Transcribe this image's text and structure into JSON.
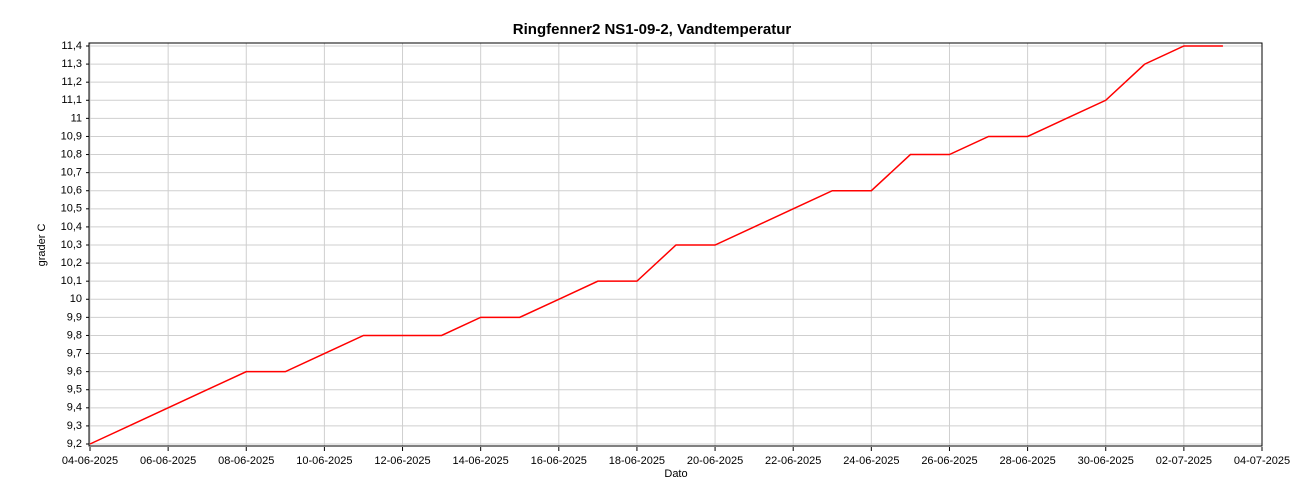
{
  "chart_data": {
    "type": "line",
    "title": "Ringfenner2 NS1-09-2, Vandtemperatur",
    "x_label": "Dato",
    "y_label": "grader C",
    "x": [
      "2025-06-04",
      "2025-06-05",
      "2025-06-06",
      "2025-06-07",
      "2025-06-08",
      "2025-06-09",
      "2025-06-10",
      "2025-06-11",
      "2025-06-12",
      "2025-06-13",
      "2025-06-14",
      "2025-06-15",
      "2025-06-16",
      "2025-06-17",
      "2025-06-18",
      "2025-06-19",
      "2025-06-20",
      "2025-06-21",
      "2025-06-22",
      "2025-06-23",
      "2025-06-24",
      "2025-06-25",
      "2025-06-26",
      "2025-06-27",
      "2025-06-28",
      "2025-06-29",
      "2025-06-30",
      "2025-07-01",
      "2025-07-02",
      "2025-07-03"
    ],
    "series": [
      {
        "color": "#ff0000",
        "values": [
          9.2,
          9.3,
          9.4,
          9.5,
          9.6,
          9.6,
          9.7,
          9.8,
          9.8,
          9.8,
          9.9,
          9.9,
          10.0,
          10.1,
          10.1,
          10.3,
          10.3,
          10.4,
          10.5,
          10.6,
          10.6,
          10.8,
          10.8,
          10.9,
          10.9,
          11.0,
          11.1,
          11.3,
          11.4,
          11.4
        ]
      }
    ],
    "xlim": [
      "2025-06-04",
      "2025-07-04"
    ],
    "xticks": [
      {
        "value": "2025-06-04",
        "label": "04-06-2025"
      },
      {
        "value": "2025-06-06",
        "label": "06-06-2025"
      },
      {
        "value": "2025-06-08",
        "label": "08-06-2025"
      },
      {
        "value": "2025-06-10",
        "label": "10-06-2025"
      },
      {
        "value": "2025-06-12",
        "label": "12-06-2025"
      },
      {
        "value": "2025-06-14",
        "label": "14-06-2025"
      },
      {
        "value": "2025-06-16",
        "label": "16-06-2025"
      },
      {
        "value": "2025-06-18",
        "label": "18-06-2025"
      },
      {
        "value": "2025-06-20",
        "label": "20-06-2025"
      },
      {
        "value": "2025-06-22",
        "label": "22-06-2025"
      },
      {
        "value": "2025-06-24",
        "label": "24-06-2025"
      },
      {
        "value": "2025-06-26",
        "label": "26-06-2025"
      },
      {
        "value": "2025-06-28",
        "label": "28-06-2025"
      },
      {
        "value": "2025-06-30",
        "label": "30-06-2025"
      },
      {
        "value": "2025-07-02",
        "label": "02-07-2025"
      },
      {
        "value": "2025-07-04",
        "label": "04-07-2025"
      }
    ],
    "ylim": [
      9.2,
      11.4
    ],
    "yticks": [
      {
        "value": 9.2,
        "label": "9,2"
      },
      {
        "value": 9.3,
        "label": "9,3"
      },
      {
        "value": 9.4,
        "label": "9,4"
      },
      {
        "value": 9.5,
        "label": "9,5"
      },
      {
        "value": 9.6,
        "label": "9,6"
      },
      {
        "value": 9.7,
        "label": "9,7"
      },
      {
        "value": 9.8,
        "label": "9,8"
      },
      {
        "value": 9.9,
        "label": "9,9"
      },
      10,
      {
        "value": 10.1,
        "label": "10,1"
      },
      {
        "value": 10.2,
        "label": "10,2"
      },
      {
        "value": 10.3,
        "label": "10,3"
      },
      {
        "value": 10.4,
        "label": "10,4"
      },
      {
        "value": 10.5,
        "label": "10,5"
      },
      {
        "value": 10.6,
        "label": "10,6"
      },
      {
        "value": 10.7,
        "label": "10,7"
      },
      {
        "value": 10.8,
        "label": "10,8"
      },
      {
        "value": 10.9,
        "label": "10,9"
      },
      11,
      {
        "value": 11.1,
        "label": "11,1"
      },
      {
        "value": 11.2,
        "label": "11,2"
      },
      {
        "value": 11.3,
        "label": "11,3"
      },
      {
        "value": 11.4,
        "label": "11,4"
      }
    ],
    "grid": true
  }
}
